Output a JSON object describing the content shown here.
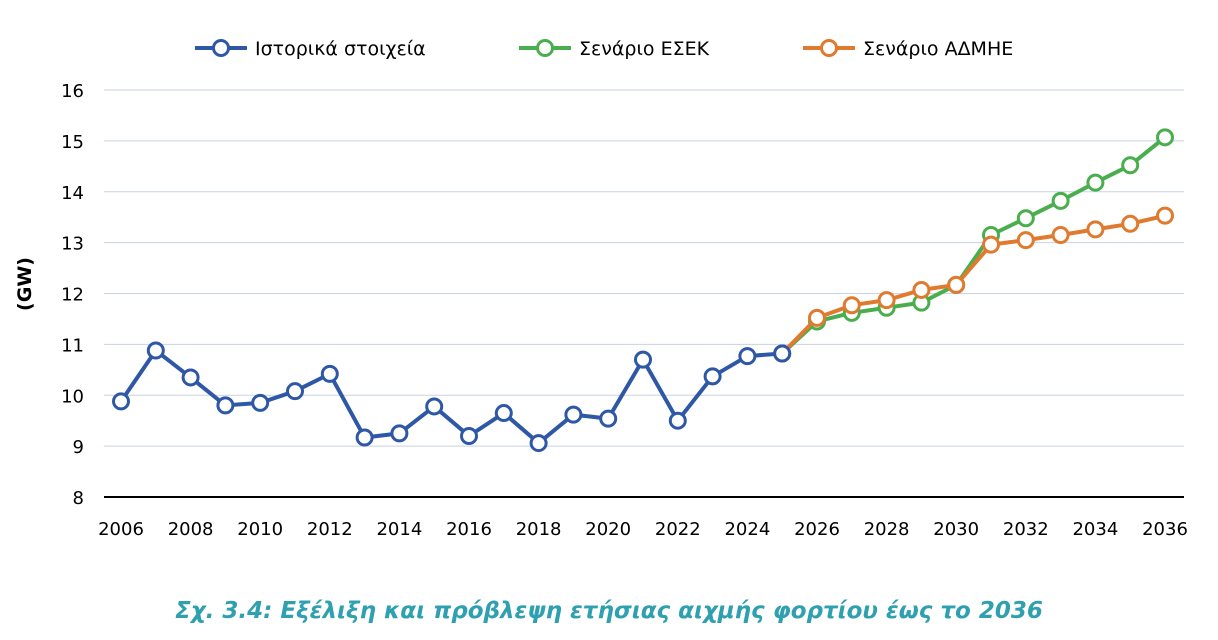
{
  "caption": "Σχ. 3.4: Εξέλιξη και πρόβλεψη ετήσιας αιχμής φορτίου έως το 2036",
  "colors": {
    "historical": "#2E58A6",
    "esek": "#4AAE4F",
    "admie": "#E07A2E",
    "caption": "#2FA0B0",
    "grid": "#C9D3E3",
    "axis": "#000000"
  },
  "chart_data": {
    "type": "line",
    "title": "",
    "xlabel": "",
    "ylabel": "(GW)",
    "ylim": [
      8,
      16
    ],
    "yticks": [
      "8",
      "9",
      "10",
      "11",
      "12",
      "13",
      "14",
      "15",
      "16"
    ],
    "xlim": [
      2006,
      2036
    ],
    "xticks": [
      "2006",
      "2008",
      "2010",
      "2012",
      "2014",
      "2016",
      "2018",
      "2020",
      "2022",
      "2024",
      "2026",
      "2028",
      "2030",
      "2032",
      "2034",
      "2036"
    ],
    "grid": true,
    "legend_position": "top",
    "series": [
      {
        "name": "Ιστορικά στοιχεία",
        "color_key": "historical",
        "x": [
          2006,
          2007,
          2008,
          2009,
          2010,
          2011,
          2012,
          2013,
          2014,
          2015,
          2016,
          2017,
          2018,
          2019,
          2020,
          2021,
          2022,
          2023,
          2024,
          2025
        ],
        "values": [
          9.88,
          10.88,
          10.35,
          9.8,
          9.85,
          10.08,
          10.42,
          9.17,
          9.25,
          9.78,
          9.2,
          9.65,
          9.06,
          9.62,
          9.54,
          10.7,
          9.5,
          10.37,
          10.77,
          10.82
        ]
      },
      {
        "name": "Σενάριο ΕΣΕΚ",
        "color_key": "esek",
        "x": [
          2025,
          2026,
          2027,
          2028,
          2029,
          2030,
          2031,
          2032,
          2033,
          2034,
          2035,
          2036
        ],
        "values": [
          10.82,
          11.45,
          11.62,
          11.72,
          11.82,
          12.17,
          13.15,
          13.48,
          13.82,
          14.18,
          14.52,
          15.07
        ]
      },
      {
        "name": "Σενάριο ΑΔΜΗΕ",
        "color_key": "admie",
        "x": [
          2025,
          2026,
          2027,
          2028,
          2029,
          2030,
          2031,
          2032,
          2033,
          2034,
          2035,
          2036
        ],
        "values": [
          10.82,
          11.52,
          11.77,
          11.87,
          12.07,
          12.17,
          12.96,
          13.05,
          13.15,
          13.26,
          13.37,
          13.53
        ]
      }
    ]
  }
}
